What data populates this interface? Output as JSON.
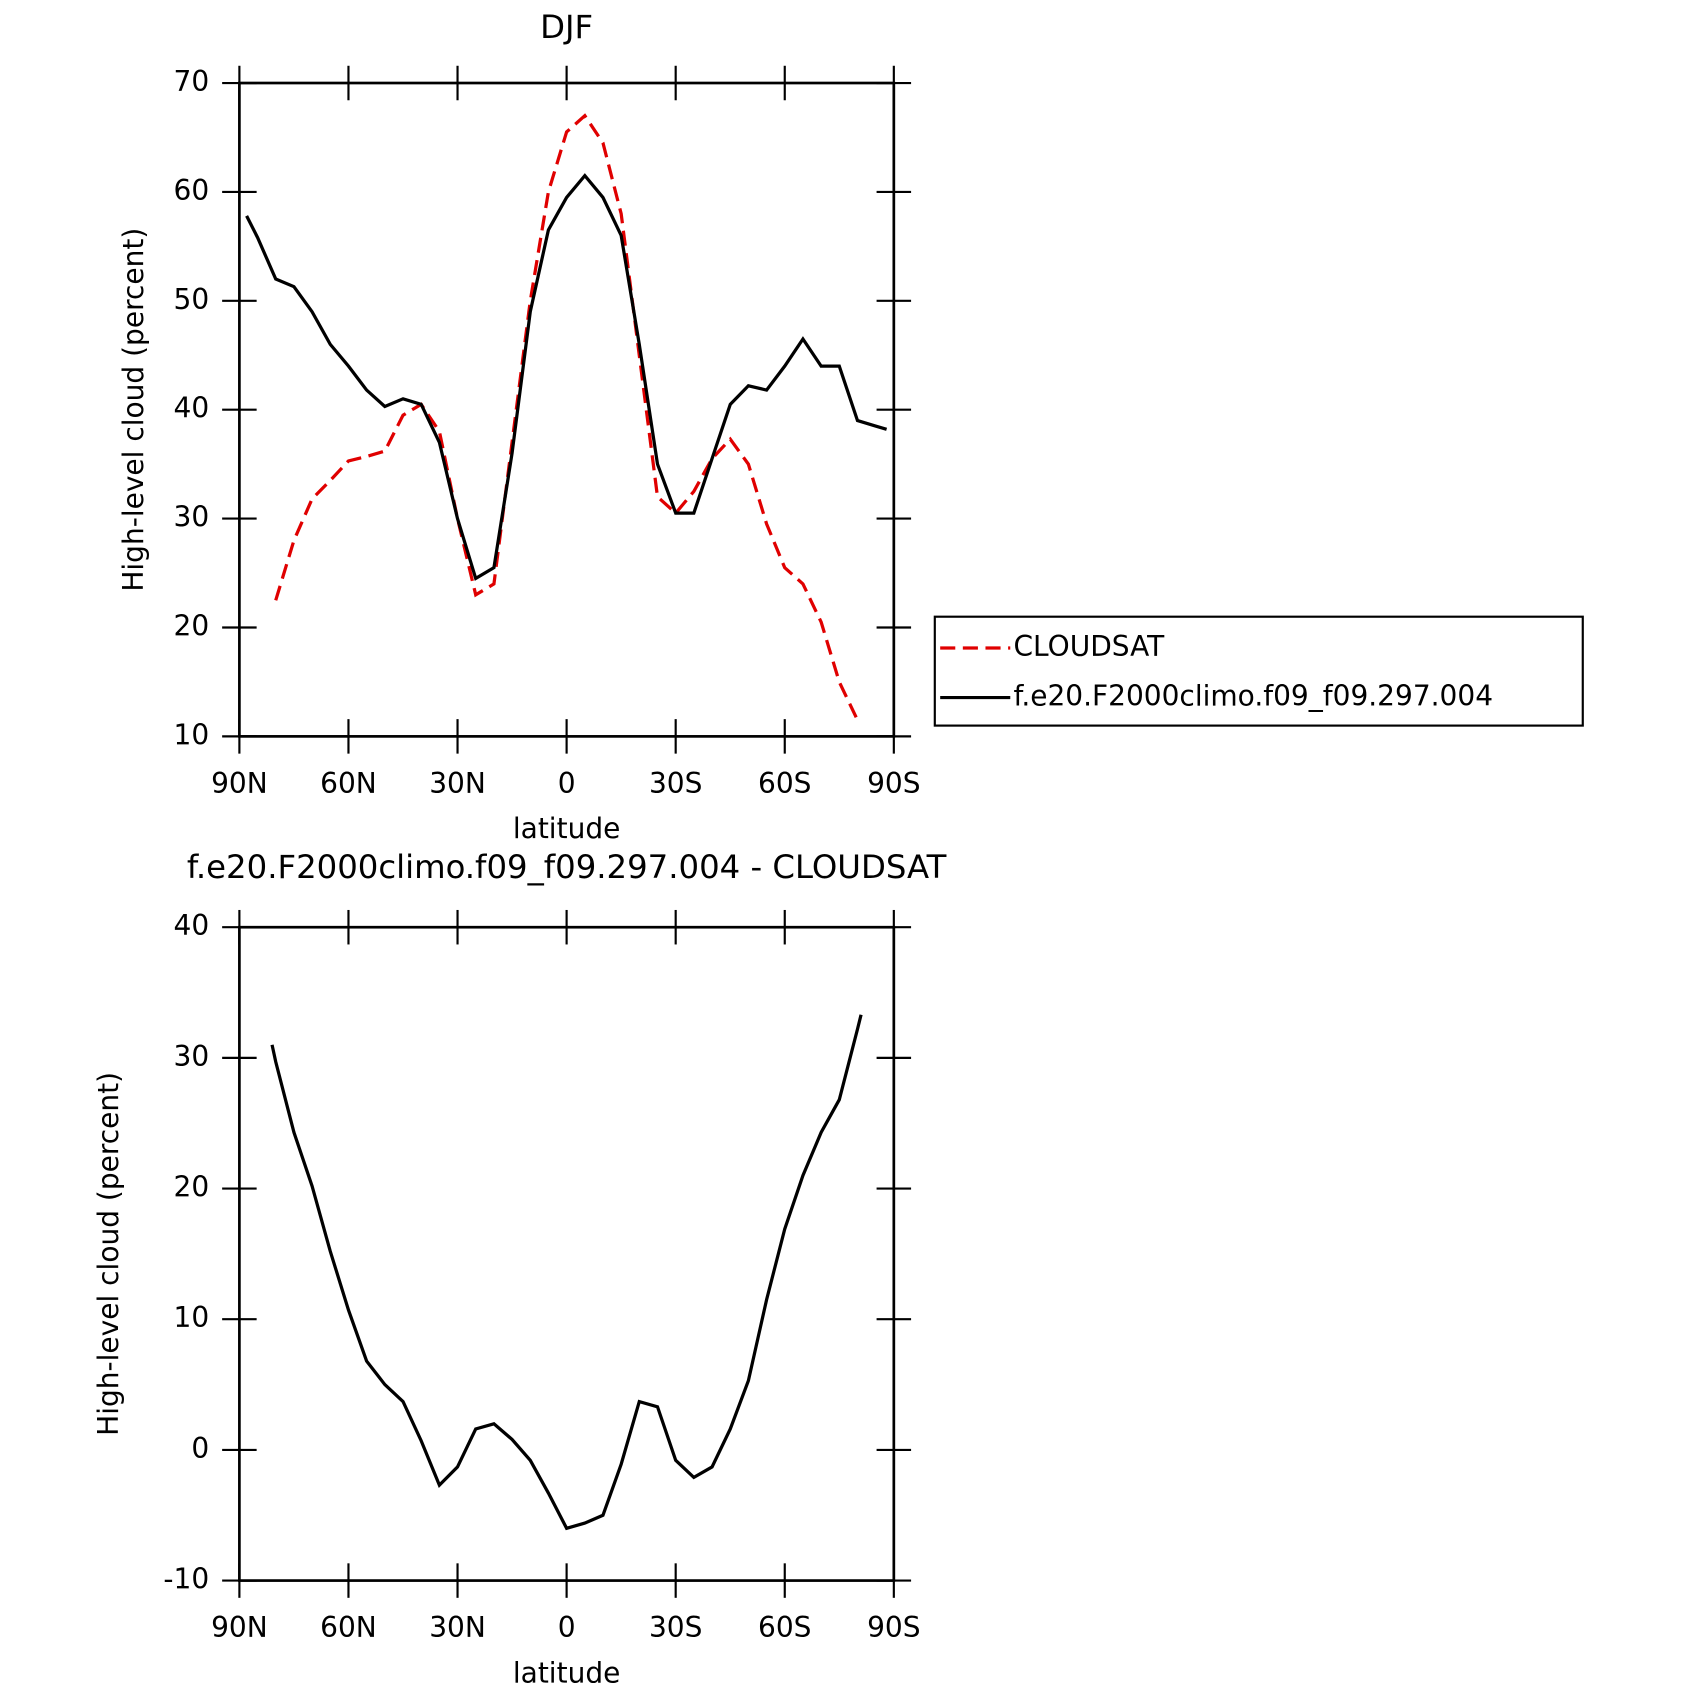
{
  "chart_data": [
    {
      "type": "line",
      "title": "DJF",
      "xlabel": "latitude",
      "ylabel": "High-level cloud (percent)",
      "x": [
        88,
        85,
        80,
        75,
        70,
        65,
        60,
        55,
        50,
        45,
        40,
        35,
        30,
        25,
        20,
        15,
        10,
        5,
        0,
        -5,
        -10,
        -15,
        -20,
        -25,
        -30,
        -35,
        -40,
        -45,
        -50,
        -55,
        -60,
        -65,
        -70,
        -75,
        -80,
        -85,
        -88
      ],
      "series": [
        {
          "name": "CLOUDSAT",
          "color": "#e00000",
          "dash": true,
          "values": [
            null,
            null,
            22.5,
            28,
            31.8,
            33.5,
            35.3,
            35.7,
            36.2,
            39.5,
            40.5,
            38,
            30,
            23,
            24,
            37,
            50,
            60,
            65.5,
            67,
            64.5,
            58,
            45,
            32,
            30.5,
            32.5,
            35.5,
            37.3,
            35,
            29.5,
            25.5,
            24,
            20.5,
            15,
            11.5,
            null,
            null
          ]
        },
        {
          "name": "f.e20.F2000climo.f09_f09.297.004",
          "color": "#000000",
          "dash": false,
          "values": [
            57.8,
            55.8,
            52,
            51.3,
            49,
            46,
            44,
            41.8,
            40.3,
            41,
            40.5,
            37,
            30,
            24.5,
            25.5,
            36,
            49,
            56.5,
            59.5,
            61.5,
            59.5,
            56,
            46,
            35,
            30.5,
            30.5,
            35.5,
            40.5,
            42.2,
            41.8,
            44,
            46.5,
            44,
            44,
            39,
            38.5,
            38.2
          ]
        }
      ],
      "xlim": [
        90,
        -90
      ],
      "xticks": [
        {
          "value": 90,
          "label": "90N"
        },
        {
          "value": 60,
          "label": "60N"
        },
        {
          "value": 30,
          "label": "30N"
        },
        0,
        {
          "value": -30,
          "label": "30S"
        },
        {
          "value": -60,
          "label": "60S"
        },
        {
          "value": -90,
          "label": "90S"
        }
      ],
      "ylim": [
        10,
        70
      ],
      "yticks": [
        10,
        20,
        30,
        40,
        50,
        60,
        70
      ],
      "legend": "right"
    },
    {
      "type": "line",
      "title": "f.e20.F2000climo.f09_f09.297.004 - CLOUDSAT",
      "xlabel": "latitude",
      "ylabel": "High-level cloud (percent)",
      "x": [
        81,
        80,
        75,
        70,
        65,
        60,
        55,
        50,
        45,
        40,
        35,
        30,
        25,
        20,
        15,
        10,
        5,
        0,
        -5,
        -10,
        -15,
        -20,
        -25,
        -30,
        -35,
        -40,
        -45,
        -50,
        -55,
        -60,
        -65,
        -70,
        -75,
        -80,
        -81
      ],
      "series": [
        {
          "name": null,
          "color": "#000000",
          "dash": false,
          "values": [
            31,
            29.7,
            24.3,
            20.2,
            15.2,
            10.7,
            6.8,
            5,
            3.7,
            0.7,
            -2.7,
            -1.3,
            1.6,
            2,
            0.8,
            -0.8,
            -3.3,
            -6,
            -5.6,
            -5,
            -1.1,
            3.7,
            3.3,
            -0.8,
            -2.1,
            -1.3,
            1.6,
            5.3,
            11.5,
            16.9,
            21,
            24.3,
            26.8,
            32.2,
            33.3
          ]
        }
      ],
      "xlim": [
        90,
        -90
      ],
      "xticks": [
        {
          "value": 90,
          "label": "90N"
        },
        {
          "value": 60,
          "label": "60N"
        },
        {
          "value": 30,
          "label": "30N"
        },
        0,
        {
          "value": -30,
          "label": "30S"
        },
        {
          "value": -60,
          "label": "60S"
        },
        {
          "value": -90,
          "label": "90S"
        }
      ],
      "ylim": [
        -10,
        40
      ],
      "yticks": [
        -10,
        0,
        10,
        20,
        30,
        40
      ]
    }
  ]
}
